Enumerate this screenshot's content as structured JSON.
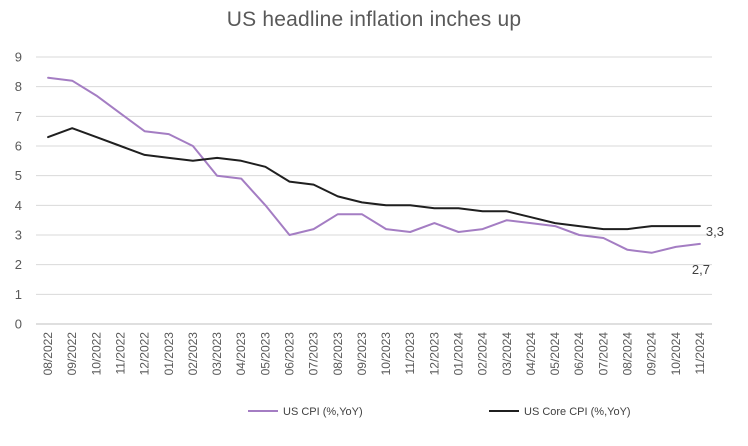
{
  "chart_data": {
    "type": "line",
    "title": "US headline inflation inches up",
    "xlabel": "",
    "ylabel": "",
    "ylim": [
      0,
      9
    ],
    "yticks": [
      "0",
      "1",
      "2",
      "3",
      "4",
      "5",
      "6",
      "7",
      "8",
      "9"
    ],
    "grid": "horizontal",
    "legend_position": "bottom",
    "x": [
      "08/2022",
      "09/2022",
      "10/2022",
      "11/2022",
      "12/2022",
      "01/2023",
      "02/2023",
      "03/2023",
      "04/2023",
      "05/2023",
      "06/2023",
      "07/2023",
      "08/2023",
      "09/2023",
      "10/2023",
      "11/2023",
      "12/2023",
      "01/2024",
      "02/2024",
      "03/2024",
      "04/2024",
      "05/2024",
      "06/2024",
      "07/2024",
      "08/2024",
      "09/2024",
      "10/2024",
      "11/2024"
    ],
    "x_tick_labels": [
      "08/2022",
      "09/2022",
      "10/2022",
      "11/2022",
      "12/2022",
      "01/2023",
      "02/2023",
      "03/2023",
      "04/2023",
      "05/2023",
      "06/2023",
      "07/2023",
      "08/2023",
      "09/2023",
      "10/2023",
      "11/2023",
      "12/2023",
      "01/2024",
      "02/2024",
      "03/2024",
      "04/2024",
      "05/2024",
      "06/2024",
      "07/2024",
      "08/2024",
      "09/2024",
      "10/2024",
      "11/2024"
    ],
    "series": [
      {
        "name": "US CPI (%,YoY)",
        "color": "#a47dc3",
        "values": [
          8.3,
          8.2,
          7.7,
          7.1,
          6.5,
          6.4,
          6.0,
          5.0,
          4.9,
          4.0,
          3.0,
          3.2,
          3.7,
          3.7,
          3.2,
          3.1,
          3.4,
          3.1,
          3.2,
          3.5,
          3.4,
          3.3,
          3.0,
          2.9,
          2.5,
          2.4,
          2.6,
          2.7
        ],
        "end_label": "2,7"
      },
      {
        "name": "US Core CPI (%,YoY)",
        "color": "#1f1f1f",
        "values": [
          6.3,
          6.6,
          6.3,
          6.0,
          5.7,
          5.6,
          5.5,
          5.6,
          5.5,
          5.3,
          4.8,
          4.7,
          4.3,
          4.1,
          4.0,
          4.0,
          3.9,
          3.9,
          3.8,
          3.8,
          3.6,
          3.4,
          3.3,
          3.2,
          3.2,
          3.3,
          3.3,
          3.3
        ],
        "end_label": "3,3"
      }
    ],
    "gridline_color": "#d9d9d9",
    "text_color": "#595959"
  }
}
